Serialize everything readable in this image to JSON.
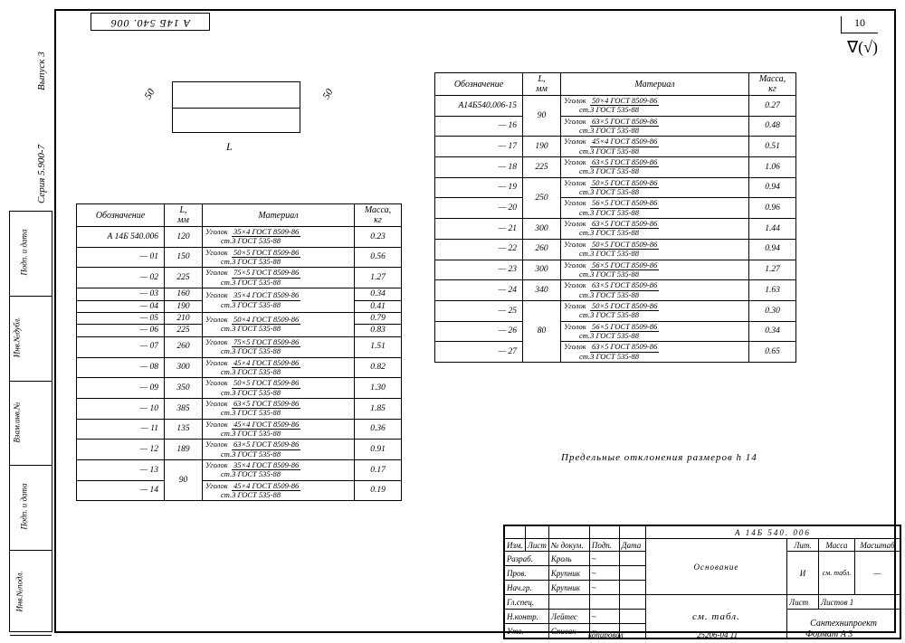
{
  "page_number": "10",
  "stamp": "∇(√)",
  "rotated_code": "А 14Б 540. 006",
  "series_label": "Серия   5.900-7",
  "issue_label": "Выпуск 3",
  "side_labels": [
    "Инв.№подл.",
    "Подп. и дата",
    "Взам.инв.№",
    "Инв.№дубл.",
    "Подп. и дата"
  ],
  "sketch": {
    "dim_left": "50",
    "dim_right": "50",
    "dim_bottom": "L"
  },
  "table_headers": {
    "col1": "Обозначение",
    "col2": "L,\nмм",
    "col3": "Материал",
    "col4": "Масса,\nкг"
  },
  "tolerance_note": "Предельные  отклонения  размеров  h 14",
  "table1": [
    {
      "code": "А 14Б 540.006",
      "L": "120",
      "mat_top": "35×4 ГОСТ 8509-86",
      "mat_bot": "ст.3 ГОСТ 535-88",
      "mass": "0.23",
      "rowspan": 1
    },
    {
      "code": "— 01",
      "L": "150",
      "mat_top": "50×5 ГОСТ 8509-86",
      "mat_bot": "ст.3 ГОСТ 535-88",
      "mass": "0.56",
      "rowspan": 1
    },
    {
      "code": "— 02",
      "L": "225",
      "mat_top": "75×5 ГОСТ 8509-86",
      "mat_bot": "ст.3 ГОСТ 535-88",
      "mass": "1.27",
      "rowspan": 1
    },
    {
      "code": "— 03",
      "L": "160",
      "mat_top": "35×4 ГОСТ 8509-86",
      "mat_bot": "ст.3 ГОСТ 535-88",
      "mass": "0.34",
      "rowspan": 2,
      "merge": "mat"
    },
    {
      "code": "— 04",
      "L": "190",
      "mass": "0.41"
    },
    {
      "code": "— 05",
      "L": "210",
      "mat_top": "50×4 ГОСТ 8509-86",
      "mat_bot": "ст.3 ГОСТ 535-88",
      "mass": "0.79",
      "rowspan": 2,
      "merge": "mat"
    },
    {
      "code": "— 06",
      "L": "225",
      "mass": "0.83"
    },
    {
      "code": "— 07",
      "L": "260",
      "mat_top": "75×5 ГОСТ 8509-86",
      "mat_bot": "ст.3 ГОСТ 535-88",
      "mass": "1.51",
      "rowspan": 1
    },
    {
      "code": "— 08",
      "L": "300",
      "mat_top": "45×4 ГОСТ 8509-86",
      "mat_bot": "ст.3 ГОСТ 535-88",
      "mass": "0.82",
      "rowspan": 1
    },
    {
      "code": "— 09",
      "L": "350",
      "mat_top": "50×5 ГОСТ 8509-86",
      "mat_bot": "ст.3 ГОСТ 535-88",
      "mass": "1.30",
      "rowspan": 1
    },
    {
      "code": "— 10",
      "L": "385",
      "mat_top": "63×5 ГОСТ 8509-86",
      "mat_bot": "ст.3 ГОСТ 535-88",
      "mass": "1.85",
      "rowspan": 1
    },
    {
      "code": "— 11",
      "L": "135",
      "mat_top": "45×4 ГОСТ 8509-86",
      "mat_bot": "ст.3 ГОСТ 535-88",
      "mass": "0.36",
      "rowspan": 1
    },
    {
      "code": "— 12",
      "L": "189",
      "mat_top": "63×5 ГОСТ 8509-86",
      "mat_bot": "ст.3 ГОСТ 535-88",
      "mass": "0.91",
      "rowspan": 1
    },
    {
      "code": "— 13",
      "L": "90",
      "mat_top": "35×4 ГОСТ 8509-86",
      "mat_bot": "ст.3 ГОСТ 535-88",
      "mass": "0.17",
      "rowspan": 2,
      "merge": "L"
    },
    {
      "code": "— 14",
      "mat_top": "45×4 ГОСТ 8509-86",
      "mat_bot": "ст.3 ГОСТ 535-88",
      "mass": "0.19"
    }
  ],
  "table2": [
    {
      "code": "А14Б540.006-15",
      "L": "90",
      "mat_top": "50×4 ГОСТ 8509-86",
      "mat_bot": "ст.3 ГОСТ 535-88",
      "mass": "0.27",
      "rowspan": 2,
      "merge": "L"
    },
    {
      "code": "— 16",
      "mat_top": "63×5 ГОСТ 8509-86",
      "mat_bot": "ст.3 ГОСТ 535-88",
      "mass": "0.48"
    },
    {
      "code": "— 17",
      "L": "190",
      "mat_top": "45×4 ГОСТ 8509-86",
      "mat_bot": "ст.3 ГОСТ 535-88",
      "mass": "0.51",
      "rowspan": 1
    },
    {
      "code": "— 18",
      "L": "225",
      "mat_top": "63×5 ГОСТ 8509-86",
      "mat_bot": "ст.3 ГОСТ 535-88",
      "mass": "1.06",
      "rowspan": 1
    },
    {
      "code": "— 19",
      "L": "250",
      "mat_top": "50×5 ГОСТ 8509-86",
      "mat_bot": "ст.3 ГОСТ 535-88",
      "mass": "0.94",
      "rowspan": 2,
      "merge": "L"
    },
    {
      "code": "— 20",
      "mat_top": "56×5 ГОСТ 8509-86",
      "mat_bot": "ст.3 ГОСТ 535-88",
      "mass": "0.96"
    },
    {
      "code": "— 21",
      "L": "300",
      "mat_top": "63×5 ГОСТ 8509-86",
      "mat_bot": "ст.3 ГОСТ 535-88",
      "mass": "1.44",
      "rowspan": 1
    },
    {
      "code": "— 22",
      "L": "260",
      "mat_top": "50×5 ГОСТ 8509-86",
      "mat_bot": "ст.3 ГОСТ 535-88",
      "mass": "0.94",
      "rowspan": 1
    },
    {
      "code": "— 23",
      "L": "300",
      "mat_top": "56×5 ГОСТ 8509-86",
      "mat_bot": "ст.3 ГОСТ 535-88",
      "mass": "1.27",
      "rowspan": 1
    },
    {
      "code": "— 24",
      "L": "340",
      "mat_top": "63×5 ГОСТ 8509-86",
      "mat_bot": "ст.3 ГОСТ 535-88",
      "mass": "1.63",
      "rowspan": 1
    },
    {
      "code": "— 25",
      "L": "80",
      "mat_top": "50×5 ГОСТ 8509-86",
      "mat_bot": "ст.3 ГОСТ 535-88",
      "mass": "0.30",
      "rowspan": 3,
      "merge": "L"
    },
    {
      "code": "— 26",
      "mat_top": "56×5 ГОСТ 8509-86",
      "mat_bot": "ст.3 ГОСТ 535-88",
      "mass": "0.34"
    },
    {
      "code": "— 27",
      "mat_top": "63×5 ГОСТ 8509-86",
      "mat_bot": "ст.3 ГОСТ 535-88",
      "mass": "0.65"
    }
  ],
  "ugolok": "Уголок",
  "title_block": {
    "main_code": "А 14Б  540. 006",
    "name": "Основание",
    "see_table": "см.  табл.",
    "org": "Сантехнипроект",
    "roles": [
      "Изм.",
      "Лист",
      "№ докум.",
      "Подп.",
      "Дата"
    ],
    "rows": [
      {
        "role": "Разраб.",
        "name": "Кроль",
        "sig": "~"
      },
      {
        "role": "Пров.",
        "name": "Крупник",
        "sig": "~"
      },
      {
        "role": "Нач.гр.",
        "name": "Крупник",
        "sig": "~"
      },
      {
        "role": "Гл.спец.",
        "name": "",
        "sig": ""
      },
      {
        "role": "Н.контр.",
        "name": "Лейтес",
        "sig": "~"
      },
      {
        "role": "Утв.",
        "name": "Спивак",
        "sig": "~"
      }
    ],
    "lit": "Лит.",
    "lit_val": "И",
    "mass": "Масса",
    "masstab": "Масштаб",
    "sm_tabl": "см.\nтабл.",
    "dash": "—",
    "list": "Лист",
    "listov": "Листов 1",
    "copied": "копировал",
    "code_num": "25206-04  11",
    "format": "Формат  А 3"
  }
}
